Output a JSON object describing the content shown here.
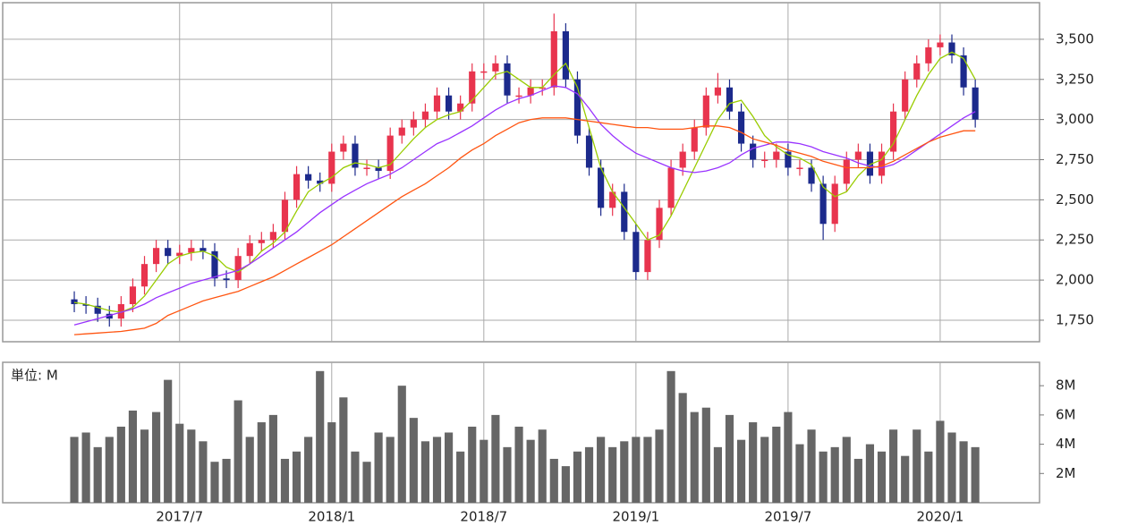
{
  "chart_data": [
    {
      "type": "candlestick",
      "open": [
        1880,
        1850,
        1840,
        1790,
        1760,
        1850,
        1960,
        2100,
        2200,
        2150,
        2170,
        2200,
        2180,
        2010,
        2000,
        2150,
        2230,
        2250,
        2300,
        2500,
        2660,
        2620,
        2600,
        2800,
        2850,
        2700,
        2700,
        2680,
        2900,
        2950,
        3000,
        3050,
        3150,
        3050,
        3100,
        3300,
        3300,
        3350,
        3150,
        3150,
        3200,
        3200,
        3550,
        3250,
        2900,
        2700,
        2450,
        2550,
        2300,
        2050,
        2250,
        2450,
        2700,
        2800,
        2950,
        3150,
        3200,
        3050,
        2850,
        2750,
        2750,
        2800,
        2700,
        2700,
        2600,
        2350,
        2600,
        2750,
        2800,
        2650,
        2800,
        3050,
        3250,
        3350,
        3450,
        3480,
        3400,
        3200
      ],
      "high": [
        1930,
        1900,
        1890,
        1840,
        1900,
        2010,
        2150,
        2250,
        2250,
        2220,
        2250,
        2250,
        2230,
        2060,
        2200,
        2280,
        2300,
        2350,
        2550,
        2710,
        2710,
        2670,
        2850,
        2900,
        2900,
        2750,
        2750,
        2950,
        3000,
        3050,
        3100,
        3200,
        3200,
        3150,
        3350,
        3350,
        3400,
        3400,
        3200,
        3250,
        3250,
        3660,
        3600,
        3300,
        2950,
        2750,
        2600,
        2600,
        2350,
        2300,
        2500,
        2750,
        2850,
        3000,
        3200,
        3290,
        3250,
        3100,
        2900,
        2800,
        2850,
        2850,
        2750,
        2750,
        2650,
        2650,
        2800,
        2850,
        2850,
        2850,
        3100,
        3300,
        3400,
        3500,
        3530,
        3530,
        3450,
        3250
      ],
      "low": [
        1800,
        1790,
        1740,
        1710,
        1710,
        1800,
        1910,
        2050,
        2100,
        2100,
        2120,
        2130,
        1960,
        1950,
        1950,
        2100,
        2180,
        2200,
        2250,
        2450,
        2570,
        2550,
        2550,
        2750,
        2650,
        2650,
        2630,
        2630,
        2850,
        2900,
        2950,
        3000,
        3000,
        3000,
        3050,
        3250,
        3250,
        3100,
        3100,
        3100,
        3150,
        3150,
        3200,
        2850,
        2650,
        2400,
        2400,
        2250,
        2000,
        2000,
        2200,
        2400,
        2650,
        2750,
        2900,
        3100,
        3000,
        2800,
        2700,
        2700,
        2700,
        2650,
        2650,
        2550,
        2250,
        2300,
        2550,
        2700,
        2600,
        2600,
        2750,
        3000,
        3200,
        3300,
        3400,
        3350,
        3150,
        2950
      ],
      "close": [
        1850,
        1840,
        1790,
        1760,
        1850,
        1960,
        2100,
        2200,
        2150,
        2170,
        2200,
        2180,
        2010,
        2000,
        2150,
        2230,
        2250,
        2300,
        2500,
        2660,
        2620,
        2600,
        2800,
        2850,
        2700,
        2700,
        2680,
        2900,
        2950,
        3000,
        3050,
        3150,
        3050,
        3100,
        3300,
        3300,
        3350,
        3150,
        3150,
        3200,
        3200,
        3550,
        3250,
        2900,
        2700,
        2450,
        2550,
        2300,
        2050,
        2250,
        2450,
        2700,
        2800,
        2950,
        3150,
        3200,
        3050,
        2850,
        2750,
        2750,
        2800,
        2700,
        2700,
        2600,
        2350,
        2600,
        2750,
        2800,
        2650,
        2800,
        3050,
        3250,
        3350,
        3450,
        3480,
        3400,
        3200,
        3000
      ],
      "up_color": "#e8344e",
      "down_color": "#1c2a8c",
      "series": [
        {
          "color": "#99cc00",
          "values": [
            1860,
            1850,
            1830,
            1810,
            1800,
            1830,
            1900,
            2000,
            2100,
            2150,
            2170,
            2180,
            2150,
            2080,
            2050,
            2100,
            2180,
            2230,
            2300,
            2430,
            2550,
            2600,
            2640,
            2700,
            2730,
            2720,
            2700,
            2720,
            2800,
            2880,
            2950,
            3000,
            3030,
            3050,
            3120,
            3200,
            3280,
            3300,
            3250,
            3200,
            3200,
            3280,
            3350,
            3200,
            2950,
            2700,
            2550,
            2450,
            2350,
            2250,
            2280,
            2400,
            2550,
            2700,
            2850,
            3000,
            3100,
            3120,
            3020,
            2900,
            2830,
            2780,
            2760,
            2720,
            2580,
            2520,
            2550,
            2650,
            2720,
            2750,
            2850,
            3000,
            3150,
            3280,
            3380,
            3420,
            3380,
            3250
          ]
        },
        {
          "color": "#9933ff",
          "values": [
            1720,
            1740,
            1760,
            1780,
            1800,
            1820,
            1850,
            1890,
            1920,
            1950,
            1980,
            2000,
            2020,
            2040,
            2060,
            2100,
            2150,
            2200,
            2250,
            2300,
            2360,
            2420,
            2470,
            2520,
            2560,
            2600,
            2630,
            2660,
            2700,
            2750,
            2800,
            2850,
            2880,
            2920,
            2960,
            3010,
            3060,
            3100,
            3130,
            3150,
            3180,
            3210,
            3200,
            3160,
            3070,
            2970,
            2900,
            2840,
            2790,
            2760,
            2730,
            2700,
            2680,
            2670,
            2680,
            2700,
            2730,
            2780,
            2820,
            2840,
            2860,
            2860,
            2850,
            2830,
            2800,
            2780,
            2760,
            2730,
            2710,
            2700,
            2720,
            2760,
            2810,
            2860,
            2910,
            2960,
            3010,
            3050
          ]
        },
        {
          "color": "#ff5511",
          "values": [
            1660,
            1665,
            1670,
            1675,
            1680,
            1690,
            1700,
            1730,
            1780,
            1810,
            1840,
            1870,
            1890,
            1910,
            1930,
            1960,
            1990,
            2020,
            2060,
            2100,
            2140,
            2180,
            2220,
            2270,
            2320,
            2370,
            2420,
            2470,
            2520,
            2560,
            2600,
            2650,
            2700,
            2760,
            2810,
            2850,
            2900,
            2940,
            2980,
            3000,
            3010,
            3010,
            3010,
            3000,
            2990,
            2980,
            2970,
            2960,
            2950,
            2950,
            2940,
            2940,
            2940,
            2950,
            2960,
            2960,
            2950,
            2920,
            2880,
            2860,
            2840,
            2810,
            2790,
            2770,
            2740,
            2720,
            2700,
            2700,
            2700,
            2710,
            2740,
            2780,
            2820,
            2860,
            2890,
            2910,
            2930,
            2930
          ]
        }
      ],
      "ylim": [
        1616,
        3728
      ],
      "yticks": [
        {
          "value": 1750,
          "label": "1,750"
        },
        {
          "value": 2000,
          "label": "2,000"
        },
        {
          "value": 2250,
          "label": "2,250"
        },
        {
          "value": 2500,
          "label": "2,500"
        },
        {
          "value": 2750,
          "label": "2,750"
        },
        {
          "value": 3000,
          "label": "3,000"
        },
        {
          "value": 3250,
          "label": "3,250"
        },
        {
          "value": 3500,
          "label": "3,500"
        }
      ],
      "grid": true
    },
    {
      "type": "bar",
      "unit_label": "単位: M",
      "categories": [
        null,
        null,
        null,
        null,
        null,
        null,
        null,
        null,
        null,
        "2017/7",
        null,
        null,
        null,
        null,
        null,
        null,
        null,
        null,
        null,
        null,
        null,
        null,
        "2018/1",
        null,
        null,
        null,
        null,
        null,
        null,
        null,
        null,
        null,
        null,
        null,
        null,
        "2018/7",
        null,
        null,
        null,
        null,
        null,
        null,
        null,
        null,
        null,
        null,
        null,
        null,
        "2019/1",
        null,
        null,
        null,
        null,
        null,
        null,
        null,
        null,
        null,
        null,
        null,
        null,
        "2019/7",
        null,
        null,
        null,
        null,
        null,
        null,
        null,
        null,
        null,
        null,
        null,
        null,
        "2020/1",
        null,
        null,
        null
      ],
      "values": [
        4.5,
        4.8,
        3.8,
        4.5,
        5.2,
        6.3,
        5.0,
        6.2,
        8.4,
        5.4,
        5.0,
        4.2,
        2.8,
        3.0,
        7.0,
        4.5,
        5.5,
        6.0,
        3.0,
        3.5,
        4.5,
        9.0,
        5.5,
        7.2,
        3.5,
        2.8,
        4.8,
        4.5,
        8.0,
        5.8,
        4.2,
        4.5,
        4.8,
        3.5,
        5.2,
        4.3,
        6.0,
        3.8,
        5.2,
        4.3,
        5.0,
        3.0,
        2.5,
        3.5,
        3.8,
        4.5,
        3.8,
        4.2,
        4.5,
        4.5,
        5.0,
        9.0,
        7.5,
        6.2,
        6.5,
        3.8,
        6.0,
        4.3,
        5.5,
        4.5,
        5.2,
        6.2,
        4.0,
        5.0,
        3.5,
        3.8,
        4.5,
        3.0,
        4.0,
        3.5,
        5.0,
        3.2,
        5.0,
        3.5,
        5.6,
        4.8,
        4.2,
        3.8
      ],
      "color": "#666666",
      "ylim": [
        0,
        9.6
      ],
      "yticks": [
        {
          "value": 2,
          "label": "2M"
        },
        {
          "value": 4,
          "label": "4M"
        },
        {
          "value": 6,
          "label": "6M"
        },
        {
          "value": 8,
          "label": "8M"
        }
      ],
      "grid": false
    }
  ]
}
